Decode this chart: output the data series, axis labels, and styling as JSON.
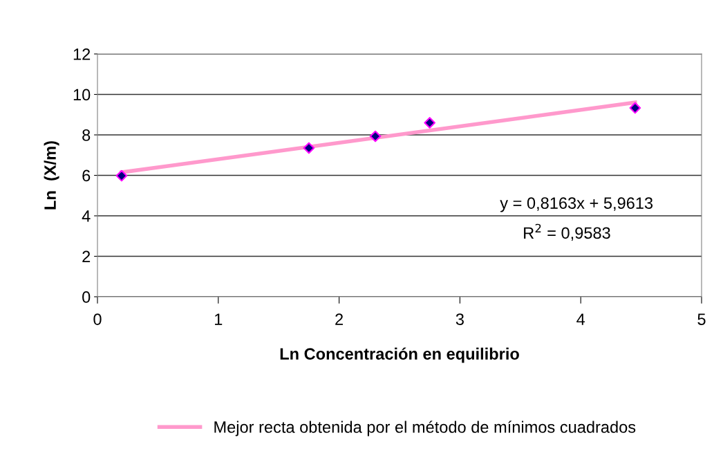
{
  "chart_data": {
    "type": "scatter",
    "xlabel": "Ln Concentración en equilibrio",
    "ylabel": "Ln  (X/m)",
    "xlim": [
      0,
      5
    ],
    "ylim": [
      0,
      12
    ],
    "xticks": [
      0,
      1,
      2,
      3,
      4,
      5
    ],
    "yticks": [
      0,
      2,
      4,
      6,
      8,
      10,
      12
    ],
    "grid": "y",
    "legend": "bottom",
    "marker": "diamond",
    "annotations": [
      "y = 0,8163x + 5,9613",
      "R$^{2}$ = 0,9583"
    ],
    "series": [
      {
        "color": "#000080",
        "x": [
          0.2,
          1.75,
          2.3,
          2.75,
          4.45
        ],
        "values": [
          5.98,
          7.35,
          7.93,
          8.6,
          9.33
        ]
      },
      {
        "type": "line",
        "name": "Mejor recta obtenida por el método de mínimos cuadrados",
        "color": "#ff99cc",
        "marker": "none",
        "line_style": "solid",
        "x": [
          0.2,
          4.45
        ],
        "values": [
          6.15,
          9.6
        ]
      }
    ]
  }
}
